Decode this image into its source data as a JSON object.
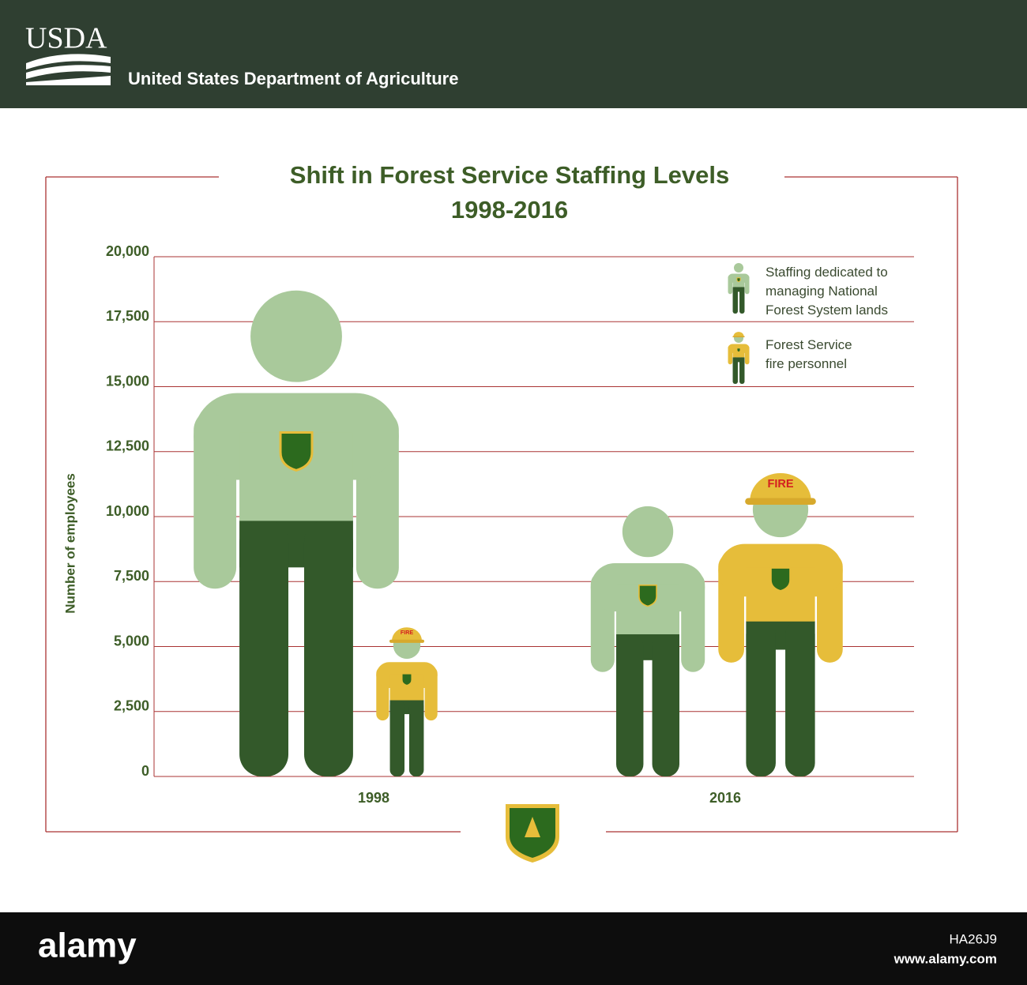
{
  "header": {
    "logo": "USDA",
    "agency": "United States Department of Agriculture"
  },
  "chart_data": {
    "type": "pictograph",
    "title": "Shift in Forest Service Staffing Levels",
    "subtitle": "1998-2016",
    "y_label": "Number of employees",
    "categories": [
      "1998",
      "2016"
    ],
    "series": [
      {
        "name": "Staffing dedicated to managing National Forest System lands",
        "color": "#a9c99b",
        "values": [
          18700,
          10400
        ]
      },
      {
        "name": "Forest Service fire personnel",
        "color": "#e6bd3a",
        "values": [
          5900,
          12000
        ],
        "helmet_text": "FIRE"
      }
    ],
    "ylim": [
      0,
      20000
    ],
    "yticks": [
      0,
      {
        "value": 2500,
        "label": "2,500"
      },
      {
        "value": 5000,
        "label": "5,000"
      },
      {
        "value": 7500,
        "label": "7,500"
      },
      {
        "value": 10000,
        "label": "10,000"
      },
      {
        "value": 12500,
        "label": "12,500"
      },
      {
        "value": 15000,
        "label": "15,000"
      },
      {
        "value": 17500,
        "label": "17,500"
      },
      {
        "value": 20000,
        "label": "20,000"
      }
    ],
    "grid": true,
    "legend": "top-right"
  },
  "footer": {
    "brand": "alamy",
    "image_id": "HA26J9",
    "url": "www.alamy.com"
  }
}
